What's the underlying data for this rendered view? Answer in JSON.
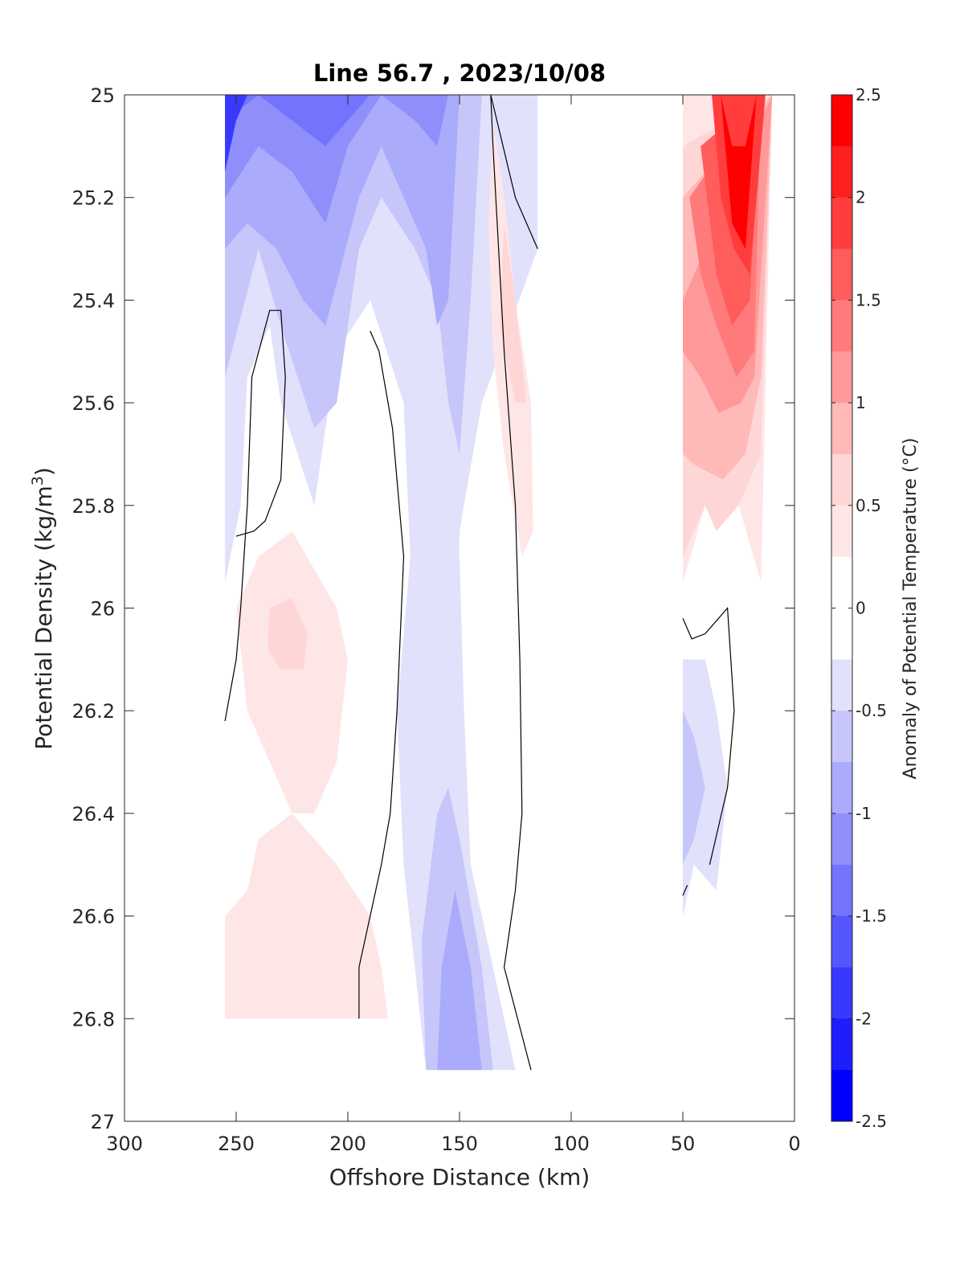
{
  "chart_data": {
    "type": "filled-contour",
    "title": "Line 56.7 , 2023/10/08",
    "xlabel": "Offshore Distance (km)",
    "ylabel_main": "Potential Density (kg/m",
    "ylabel_sup": "3",
    "ylabel_end": ")",
    "colorbar_label": "Anomaly of Potential Temperature (°C)",
    "x_reversed": true,
    "xlim": [
      0,
      300
    ],
    "ylim": [
      25,
      27
    ],
    "y_reversed": true,
    "xticks": [
      300,
      250,
      200,
      150,
      100,
      50,
      0
    ],
    "xtick_labels": [
      "300",
      "250",
      "200",
      "150",
      "100",
      "50",
      "0"
    ],
    "yticks": [
      25,
      25.2,
      25.4,
      25.6,
      25.8,
      26,
      26.2,
      26.4,
      26.6,
      26.8,
      27
    ],
    "ytick_labels": [
      "25",
      "25.2",
      "25.4",
      "25.6",
      "25.8",
      "26",
      "26.2",
      "26.4",
      "26.6",
      "26.8",
      "27"
    ],
    "colorbar": {
      "min": -2.5,
      "max": 2.5,
      "ticks": [
        2.5,
        2,
        1.5,
        1,
        0.5,
        0,
        -0.5,
        -1,
        -1.5,
        -2,
        -2.5
      ],
      "tick_labels": [
        "2.5",
        "2",
        "1.5",
        "1",
        "0.5",
        "0",
        "-0.5",
        "-1",
        "-1.5",
        "-2",
        "-2.5"
      ],
      "levels_top_to_bottom": [
        "#ff0000",
        "#ff1f1f",
        "#ff3d3d",
        "#ff5c5c",
        "#ff7b7b",
        "#ff9999",
        "#ffb9b9",
        "#ffd6d6",
        "#ffe6e6",
        "#ffffff",
        "#ffffff",
        "#e1e1fc",
        "#c6c6fb",
        "#ababfb",
        "#8f8ffc",
        "#7373fd",
        "#5656fd",
        "#3939fe",
        "#1d1dfe",
        "#0000ff"
      ]
    },
    "anomaly_regions": [
      {
        "value": -0.3,
        "color": "#e1e1fc",
        "points": [
          [
            255,
            25
          ],
          [
            115,
            25
          ],
          [
            115,
            25.3
          ],
          [
            140,
            25.6
          ],
          [
            150,
            25.85
          ],
          [
            152,
            26.5
          ],
          [
            145,
            26.7
          ],
          [
            133,
            26.9
          ],
          [
            165,
            26.9
          ],
          [
            170,
            26.7
          ],
          [
            175,
            26.5
          ],
          [
            178,
            26.2
          ],
          [
            172,
            25.9
          ],
          [
            175,
            25.6
          ],
          [
            190,
            25.4
          ],
          [
            205,
            25.5
          ],
          [
            215,
            25.8
          ],
          [
            230,
            25.6
          ],
          [
            235,
            25.45
          ],
          [
            245,
            25.55
          ],
          [
            248,
            25.8
          ],
          [
            255,
            25.95
          ]
        ]
      },
      {
        "value": -0.6,
        "color": "#c6c6fb",
        "points": [
          [
            255,
            25
          ],
          [
            140,
            25
          ],
          [
            145,
            25.4
          ],
          [
            150,
            25.7
          ],
          [
            155,
            25.6
          ],
          [
            160,
            25.4
          ],
          [
            170,
            25.3
          ],
          [
            185,
            25.2
          ],
          [
            195,
            25.3
          ],
          [
            205,
            25.6
          ],
          [
            215,
            25.65
          ],
          [
            230,
            25.45
          ],
          [
            240,
            25.3
          ],
          [
            252,
            25.5
          ],
          [
            255,
            25.55
          ]
        ]
      },
      {
        "value": -0.9,
        "color": "#ababfb",
        "points": [
          [
            255,
            25
          ],
          [
            150,
            25
          ],
          [
            155,
            25.4
          ],
          [
            160,
            25.45
          ],
          [
            165,
            25.3
          ],
          [
            175,
            25.2
          ],
          [
            185,
            25.1
          ],
          [
            195,
            25.2
          ],
          [
            210,
            25.45
          ],
          [
            220,
            25.4
          ],
          [
            232,
            25.3
          ],
          [
            245,
            25.25
          ],
          [
            255,
            25.3
          ]
        ]
      },
      {
        "value": -1.2,
        "color": "#8f8ffc",
        "points": [
          [
            255,
            25
          ],
          [
            155,
            25
          ],
          [
            160,
            25.1
          ],
          [
            170,
            25.05
          ],
          [
            185,
            25.0
          ],
          [
            200,
            25.1
          ],
          [
            210,
            25.25
          ],
          [
            225,
            25.15
          ],
          [
            240,
            25.1
          ],
          [
            255,
            25.2
          ]
        ]
      },
      {
        "value": -1.5,
        "color": "#7373fd",
        "points": [
          [
            255,
            25
          ],
          [
            190,
            25
          ],
          [
            200,
            25.05
          ],
          [
            210,
            25.1
          ],
          [
            225,
            25.05
          ],
          [
            240,
            25.0
          ],
          [
            255,
            25.05
          ]
        ]
      },
      {
        "value": -1.9,
        "color": "#3939fe",
        "points": [
          [
            255,
            25
          ],
          [
            245,
            25
          ],
          [
            250,
            25.05
          ],
          [
            255,
            25.15
          ]
        ]
      },
      {
        "value": -0.4,
        "color": "#e1e1fc",
        "points": [
          [
            165,
            26.9
          ],
          [
            125,
            26.9
          ],
          [
            135,
            26.7
          ],
          [
            145,
            26.5
          ],
          [
            148,
            26.2
          ],
          [
            150,
            25.9
          ],
          [
            160,
            25.8
          ],
          [
            168,
            25.85
          ],
          [
            172,
            26.2
          ],
          [
            175,
            26.5
          ],
          [
            170,
            26.7
          ]
        ]
      },
      {
        "value": -0.7,
        "color": "#c6c6fb",
        "points": [
          [
            165,
            26.9
          ],
          [
            135,
            26.9
          ],
          [
            140,
            26.7
          ],
          [
            150,
            26.45
          ],
          [
            155,
            26.35
          ],
          [
            160,
            26.4
          ],
          [
            167,
            26.65
          ]
        ]
      },
      {
        "value": -1.0,
        "color": "#ababfb",
        "points": [
          [
            160,
            26.9
          ],
          [
            140,
            26.9
          ],
          [
            145,
            26.7
          ],
          [
            152,
            26.55
          ],
          [
            158,
            26.7
          ]
        ]
      },
      {
        "value": -0.4,
        "color": "#e1e1fc",
        "points": [
          [
            50,
            26.1
          ],
          [
            40,
            26.1
          ],
          [
            35,
            26.2
          ],
          [
            30,
            26.35
          ],
          [
            35,
            26.55
          ],
          [
            45,
            26.5
          ],
          [
            50,
            26.6
          ]
        ]
      },
      {
        "value": -0.7,
        "color": "#c6c6fb",
        "points": [
          [
            50,
            26.2
          ],
          [
            45,
            26.25
          ],
          [
            40,
            26.35
          ],
          [
            45,
            26.45
          ],
          [
            50,
            26.5
          ]
        ]
      },
      {
        "value": 0.3,
        "color": "#ffe6e6",
        "points": [
          [
            135,
            25.05
          ],
          [
            130,
            25.2
          ],
          [
            125,
            25.4
          ],
          [
            118,
            25.6
          ],
          [
            117,
            25.85
          ],
          [
            122,
            25.9
          ],
          [
            130,
            25.7
          ],
          [
            135,
            25.5
          ],
          [
            137,
            25.25
          ]
        ]
      },
      {
        "value": 0.6,
        "color": "#ffd6d6",
        "points": [
          [
            130,
            25.25
          ],
          [
            125,
            25.4
          ],
          [
            120,
            25.6
          ],
          [
            125,
            25.6
          ],
          [
            132,
            25.45
          ]
        ]
      },
      {
        "value": 0.3,
        "color": "#ffe6e6",
        "points": [
          [
            250,
            26.0
          ],
          [
            240,
            25.9
          ],
          [
            225,
            25.85
          ],
          [
            205,
            26.0
          ],
          [
            200,
            26.1
          ],
          [
            205,
            26.3
          ],
          [
            215,
            26.4
          ],
          [
            225,
            26.4
          ],
          [
            235,
            26.3
          ],
          [
            245,
            26.2
          ]
        ]
      },
      {
        "value": 0.6,
        "color": "#ffd6d6",
        "points": [
          [
            235,
            26.0
          ],
          [
            225,
            25.98
          ],
          [
            218,
            26.05
          ],
          [
            220,
            26.12
          ],
          [
            230,
            26.12
          ],
          [
            236,
            26.08
          ]
        ]
      },
      {
        "value": 0.3,
        "color": "#ffe6e6",
        "points": [
          [
            255,
            26.6
          ],
          [
            245,
            26.55
          ],
          [
            240,
            26.45
          ],
          [
            225,
            26.4
          ],
          [
            215,
            26.45
          ],
          [
            205,
            26.5
          ],
          [
            190,
            26.6
          ],
          [
            185,
            26.7
          ],
          [
            182,
            26.8
          ],
          [
            255,
            26.8
          ]
        ]
      },
      {
        "value": 0.3,
        "color": "#ffe6e6",
        "points": [
          [
            50,
            25.0
          ],
          [
            10,
            25.0
          ],
          [
            15,
            25.95
          ],
          [
            25,
            25.8
          ],
          [
            40,
            25.8
          ],
          [
            50,
            25.95
          ]
        ]
      },
      {
        "value": 0.6,
        "color": "#ffd6d6",
        "points": [
          [
            50,
            25.1
          ],
          [
            10,
            25.0
          ],
          [
            15,
            25.7
          ],
          [
            25,
            25.8
          ],
          [
            35,
            25.85
          ],
          [
            40,
            25.8
          ],
          [
            50,
            25.9
          ]
        ]
      },
      {
        "value": 0.9,
        "color": "#ffb9b9",
        "points": [
          [
            50,
            25.2
          ],
          [
            10,
            25.0
          ],
          [
            15,
            25.55
          ],
          [
            22,
            25.7
          ],
          [
            32,
            25.75
          ],
          [
            45,
            25.72
          ],
          [
            50,
            25.7
          ]
        ]
      },
      {
        "value": 1.2,
        "color": "#ff9999",
        "points": [
          [
            50,
            25.4
          ],
          [
            10,
            25.0
          ],
          [
            18,
            25.55
          ],
          [
            24,
            25.6
          ],
          [
            34,
            25.62
          ],
          [
            42,
            25.55
          ],
          [
            50,
            25.5
          ]
        ]
      },
      {
        "value": 1.5,
        "color": "#ff7b7b",
        "points": [
          [
            47,
            25.2
          ],
          [
            15,
            25.0
          ],
          [
            18,
            25.5
          ],
          [
            26,
            25.55
          ],
          [
            35,
            25.45
          ],
          [
            42,
            25.35
          ]
        ]
      },
      {
        "value": 1.8,
        "color": "#ff5c5c",
        "points": [
          [
            42,
            25.1
          ],
          [
            15,
            25.0
          ],
          [
            20,
            25.4
          ],
          [
            28,
            25.45
          ],
          [
            35,
            25.35
          ]
        ]
      },
      {
        "value": 2.1,
        "color": "#ff3d3d",
        "points": [
          [
            37,
            25.0
          ],
          [
            13,
            25.0
          ],
          [
            20,
            25.35
          ],
          [
            27,
            25.3
          ],
          [
            33,
            25.2
          ]
        ]
      },
      {
        "value": 2.4,
        "color": "#ff0000",
        "points": [
          [
            33,
            25.0
          ],
          [
            28,
            25.1
          ],
          [
            22,
            25.1
          ],
          [
            17,
            25.0
          ],
          [
            22,
            25.3
          ],
          [
            28,
            25.25
          ]
        ]
      }
    ],
    "zero_contours": [
      {
        "label": "0",
        "points": [
          [
            255,
            26.22
          ],
          [
            250,
            26.1
          ],
          [
            248,
            26.0
          ],
          [
            245,
            25.8
          ],
          [
            243,
            25.55
          ],
          [
            235,
            25.42
          ],
          [
            230,
            25.42
          ],
          [
            228,
            25.55
          ],
          [
            230,
            25.75
          ],
          [
            237,
            25.83
          ],
          [
            242,
            25.85
          ],
          [
            250,
            25.86
          ]
        ]
      },
      {
        "label": "0",
        "points": [
          [
            190,
            25.46
          ],
          [
            186,
            25.5
          ],
          [
            180,
            25.65
          ],
          [
            175,
            25.9
          ],
          [
            178,
            26.2
          ],
          [
            181,
            26.4
          ],
          [
            185,
            26.5
          ],
          [
            190,
            26.6
          ],
          [
            195,
            26.7
          ],
          [
            195,
            26.8
          ]
        ]
      },
      {
        "label": "0",
        "points": [
          [
            136,
            25.0
          ],
          [
            135,
            25.1
          ],
          [
            130,
            25.5
          ],
          [
            125,
            25.8
          ],
          [
            123,
            26.1
          ],
          [
            122,
            26.4
          ],
          [
            125,
            26.55
          ],
          [
            130,
            26.7
          ],
          [
            118,
            26.9
          ]
        ]
      },
      {
        "label": "0",
        "points": [
          [
            136,
            25.0
          ],
          [
            125,
            25.2
          ],
          [
            115,
            25.3
          ]
        ]
      },
      {
        "label": "0",
        "points": [
          [
            50,
            26.02
          ],
          [
            46,
            26.06
          ],
          [
            40,
            26.05
          ],
          [
            30,
            26.0
          ],
          [
            27,
            26.2
          ],
          [
            30,
            26.35
          ],
          [
            38,
            26.5
          ]
        ]
      },
      {
        "label": "0",
        "points": [
          [
            48,
            26.54
          ],
          [
            50,
            26.56
          ]
        ]
      }
    ]
  }
}
